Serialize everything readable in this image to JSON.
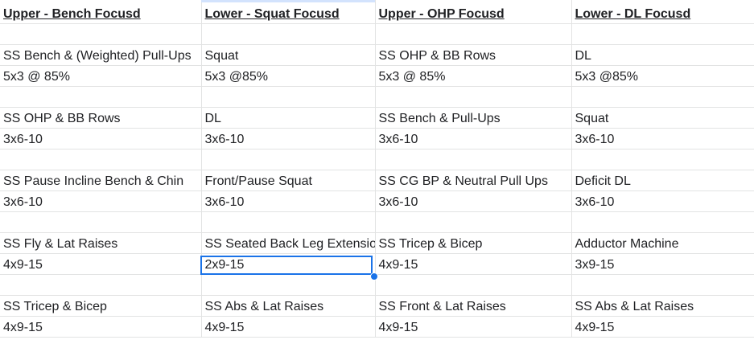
{
  "headers": [
    "Upper - Bench Focusd",
    "Lower - Squat Focusd",
    "Upper - OHP Focusd",
    "Lower - DL Focusd"
  ],
  "rows": [
    [
      "",
      "",
      "",
      ""
    ],
    [
      "SS Bench & (Weighted) Pull-Ups",
      "Squat",
      "SS OHP & BB Rows",
      "DL"
    ],
    [
      "5x3 @ 85%",
      "5x3 @85%",
      "5x3 @ 85%",
      "5x3 @85%"
    ],
    [
      "",
      "",
      "",
      ""
    ],
    [
      "SS OHP & BB Rows",
      "DL",
      "SS Bench & Pull-Ups",
      "Squat"
    ],
    [
      "3x6-10",
      "3x6-10",
      "3x6-10",
      "3x6-10"
    ],
    [
      "",
      "",
      "",
      ""
    ],
    [
      "SS Pause Incline Bench & Chin",
      "Front/Pause Squat",
      "SS CG BP & Neutral Pull Ups",
      "Deficit DL"
    ],
    [
      "3x6-10",
      "3x6-10",
      "3x6-10",
      "3x6-10"
    ],
    [
      "",
      "",
      "",
      ""
    ],
    [
      "SS Fly & Lat Raises",
      "SS Seated Back Leg Extensions",
      "SS Tricep & Bicep",
      "Adductor Machine"
    ],
    [
      "4x9-15",
      "2x9-15",
      "4x9-15",
      "3x9-15"
    ],
    [
      "",
      "",
      "",
      ""
    ],
    [
      "SS Tricep & Bicep",
      "SS Abs & Lat Raises",
      "SS Front & Lat Raises",
      "SS Abs & Lat Raises"
    ],
    [
      "4x9-15",
      "4x9-15",
      "4x9-15",
      "4x9-15"
    ]
  ],
  "selected_cell": {
    "row": 11,
    "col": 1
  },
  "colors": {
    "selection": "#1a73e8",
    "gridline": "#e2e3e3",
    "text": "#202124"
  }
}
